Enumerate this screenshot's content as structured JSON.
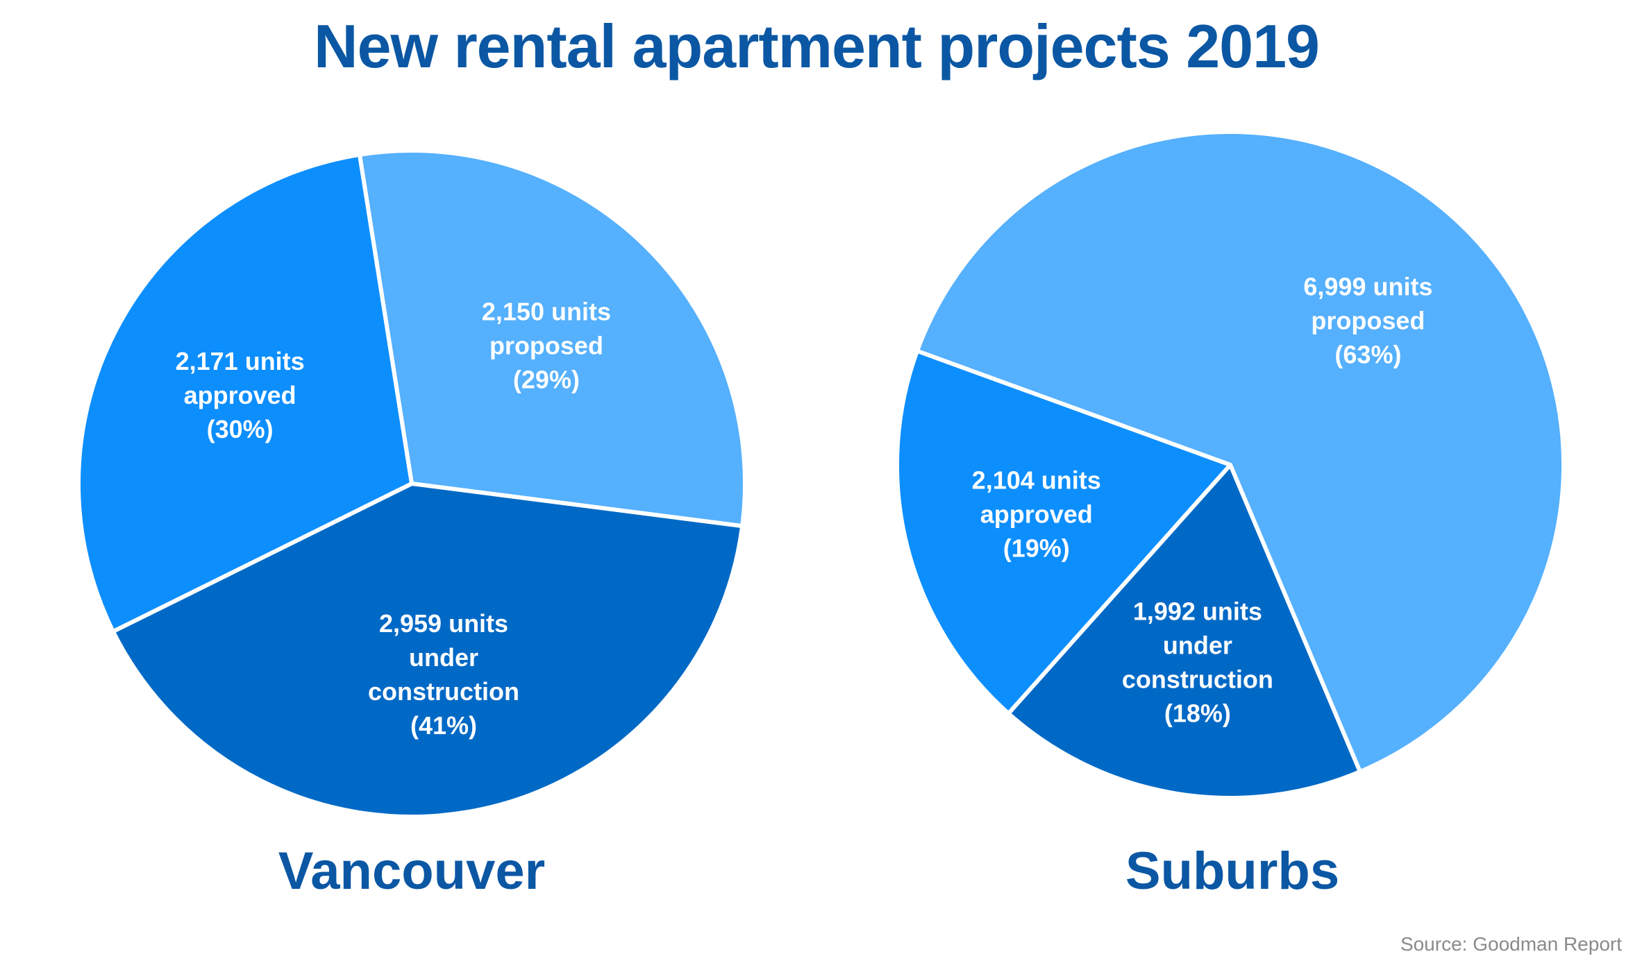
{
  "title": "New rental apartment projects 2019",
  "source": "Source: Goodman Report",
  "colors": {
    "proposed": "#55b0fd",
    "approved": "#0d8efd",
    "under_construction": "#0069c6",
    "title": "#0b57a4",
    "label_text": "#ffffff",
    "separator": "#ffffff"
  },
  "chart_data": [
    {
      "type": "pie",
      "name": "Vancouver",
      "start_angle_deg": -9,
      "direction": "clockwise",
      "slices": [
        {
          "category": "proposed",
          "units": 2150,
          "percent": 29,
          "label_lines": [
            "2,150 units",
            "proposed",
            "(29%)"
          ]
        },
        {
          "category": "under_construction",
          "units": 2959,
          "percent": 41,
          "label_lines": [
            "2,959 units",
            "under",
            "construction",
            "(41%)"
          ]
        },
        {
          "category": "approved",
          "units": 2171,
          "percent": 30,
          "label_lines": [
            "2,171 units",
            "approved",
            "(30%)"
          ]
        }
      ]
    },
    {
      "type": "pie",
      "name": "Suburbs",
      "start_angle_deg": -70,
      "direction": "clockwise",
      "slices": [
        {
          "category": "proposed",
          "units": 6999,
          "percent": 63,
          "label_lines": [
            "6,999 units",
            "proposed",
            "(63%)"
          ]
        },
        {
          "category": "under_construction",
          "units": 1992,
          "percent": 18,
          "label_lines": [
            "1,992 units",
            "under",
            "construction",
            "(18%)"
          ]
        },
        {
          "category": "approved",
          "units": 2104,
          "percent": 19,
          "label_lines": [
            "2,104 units",
            "approved",
            "(19%)"
          ]
        }
      ]
    }
  ]
}
